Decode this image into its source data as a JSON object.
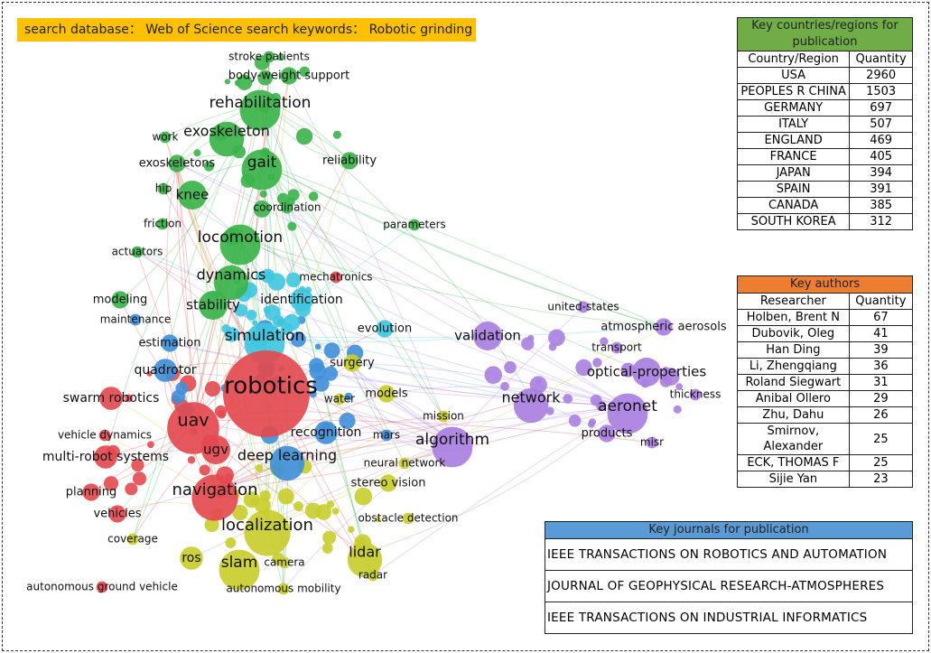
{
  "header": {
    "text": "search database： Web of Science search keywords： Robotic grinding"
  },
  "network": {
    "labels": [
      "stroke patients",
      "body-weight support",
      "rehabilitation",
      "work",
      "exoskeleton",
      "exoskeletons",
      "gait",
      "reliability",
      "hip",
      "knee",
      "coordination",
      "friction",
      "parameters",
      "locomotion",
      "actuators",
      "dynamics",
      "mechatronics",
      "modeling",
      "stability",
      "identification",
      "maintenance",
      "evolution",
      "estimation",
      "simulation",
      "validation",
      "united-states",
      "atmospheric aerosols",
      "transport",
      "surgery",
      "quadrotor",
      "optical-properties",
      "robotics",
      "thickness",
      "swarm robotics",
      "water",
      "models",
      "network",
      "uav",
      "aeronet",
      "mission",
      "recognition",
      "vehicle dynamics",
      "mars",
      "algorithm",
      "products",
      "misr",
      "ugv",
      "deep learning",
      "multi-robot systems",
      "neural network",
      "planning",
      "stereo vision",
      "navigation",
      "vehicles",
      "obstacle detection",
      "localization",
      "coverage",
      "lidar",
      "ros",
      "slam",
      "camera",
      "radar",
      "autonomous ground vehicle",
      "autonomous mobility"
    ]
  },
  "countries": {
    "title": "Key countries/regions for publication",
    "columns": [
      "Country/Region",
      "Quantity"
    ],
    "rows": [
      [
        "USA",
        "2960"
      ],
      [
        "PEOPLES R CHINA",
        "1503"
      ],
      [
        "GERMANY",
        "697"
      ],
      [
        "ITALY",
        "507"
      ],
      [
        "ENGLAND",
        "469"
      ],
      [
        "FRANCE",
        "405"
      ],
      [
        "JAPAN",
        "394"
      ],
      [
        "SPAIN",
        "391"
      ],
      [
        "CANADA",
        "385"
      ],
      [
        "SOUTH KOREA",
        "312"
      ]
    ]
  },
  "authors": {
    "title": "Key authors",
    "columns": [
      "Researcher",
      "Quantity"
    ],
    "rows": [
      [
        "Holben, Brent N",
        "67"
      ],
      [
        "Dubovik, Oleg",
        "41"
      ],
      [
        "Han Ding",
        "39"
      ],
      [
        "Li, Zhengqiang",
        "36"
      ],
      [
        "Roland Siegwart",
        "31"
      ],
      [
        "Anibal Ollero",
        "29"
      ],
      [
        "Zhu, Dahu",
        "26"
      ],
      [
        "Smirnov, Alexander",
        "25"
      ],
      [
        "ECK, THOMAS F",
        "25"
      ],
      [
        "Sijie Yan",
        "23"
      ]
    ]
  },
  "journals": {
    "title": "Key journals for publication",
    "rows": [
      "IEEE TRANSACTIONS ON ROBOTICS AND AUTOMATION",
      "JOURNAL OF GEOPHYSICAL RESEARCH-ATMOSPHERES",
      "IEEE TRANSACTIONS ON INDUSTRIAL INFORMATICS"
    ]
  }
}
